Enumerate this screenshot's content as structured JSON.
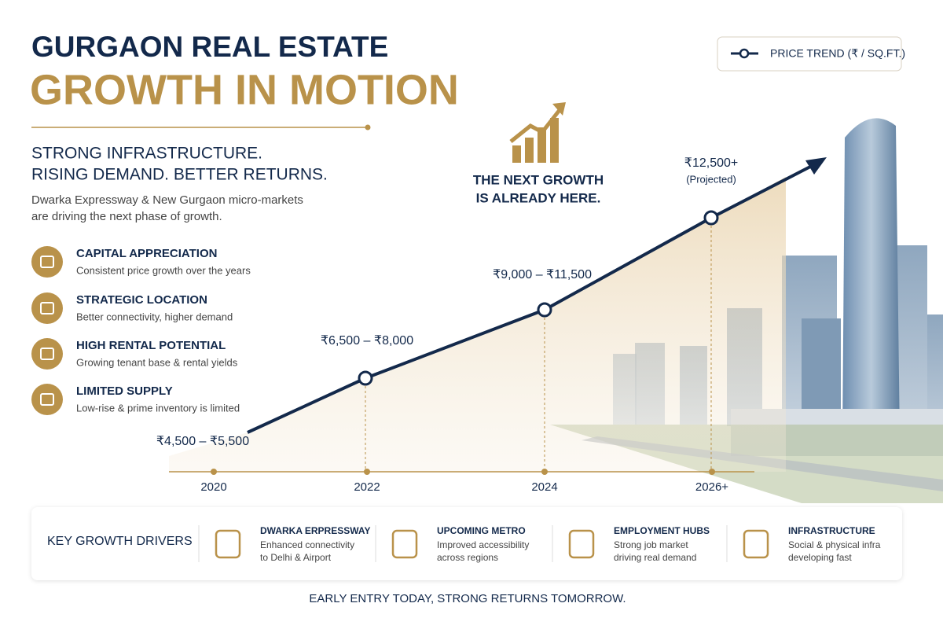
{
  "header": {
    "title": "GURGAON REAL ESTATE",
    "subtitle": "GROWTH IN MOTION"
  },
  "tagline": [
    "STRONG INFRASTRUCTURE.",
    "RISING DEMAND. BETTER RETURNS."
  ],
  "description": [
    "Dwarka Expressway & New Gurgaon micro-markets",
    "are driving the next phase of growth."
  ],
  "features": [
    {
      "title": "CAPITAL APPRECIATION",
      "text": "Consistent price growth over the years"
    },
    {
      "title": "STRATEGIC LOCATION",
      "text": "Better connectivity, higher demand"
    },
    {
      "title": "HIGH RENTAL POTENTIAL",
      "text": "Growing tenant base & rental yields"
    },
    {
      "title": "LIMITED SUPPLY",
      "text": "Low-rise & prime inventory is limited"
    }
  ],
  "legend": "PRICE TREND (₹ / SQ.FT.)",
  "callout": [
    "THE NEXT GROWTH",
    "IS ALREADY HERE."
  ],
  "trend": {
    "points": [
      {
        "year": "2020",
        "label": "₹4,500 – ₹5,500"
      },
      {
        "year": "2022",
        "label": "₹6,500 – ₹8,000"
      },
      {
        "year": "2024",
        "label": "₹9,000 – ₹11,500"
      },
      {
        "year": "2026+",
        "label": "₹12,500+",
        "note": "(Projected)"
      }
    ]
  },
  "drivers": {
    "heading": "KEY GROWTH DRIVERS",
    "items": [
      {
        "title": "DWARKA ERPRESSWAY",
        "lines": [
          "Enhanced connectivity",
          "to Delhi & Airport"
        ]
      },
      {
        "title": "UPCOMING METRO",
        "lines": [
          "Improved accessibility",
          "across regions"
        ]
      },
      {
        "title": "EMPLOYMENT HUBS",
        "lines": [
          "Strong job market",
          "driving real demand"
        ]
      },
      {
        "title": "INFRASTRUCTURE",
        "lines": [
          "Social & physical infra",
          "developing fast"
        ]
      }
    ]
  },
  "footer": "EARLY ENTRY TODAY, STRONG RETURNS TOMORROW."
}
